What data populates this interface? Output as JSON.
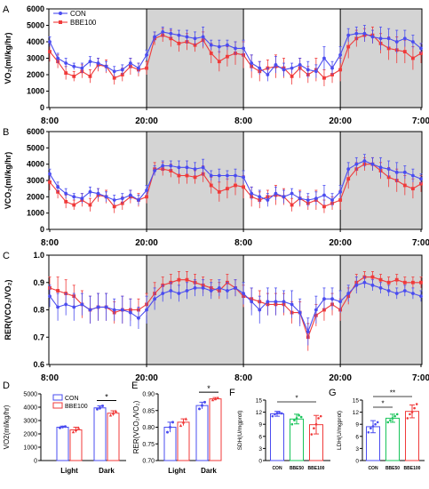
{
  "chart_data": [
    {
      "panel": "A",
      "type": "line",
      "ylabel": "VO₂(ml/kg/hr)",
      "ylim": [
        0,
        6000
      ],
      "yticks": [
        0,
        1000,
        2000,
        3000,
        4000,
        5000,
        6000
      ],
      "xtick_labels": [
        "8:00",
        "20:00",
        "8:00",
        "20:00",
        "7:00"
      ],
      "shaded_regions": [
        [
          12,
          24
        ],
        [
          36,
          47
        ]
      ],
      "legend": "top-left",
      "series": [
        {
          "name": "CON",
          "color": "#4a4cf0",
          "marker": "circle",
          "values": [
            4000,
            3000,
            2700,
            2500,
            2400,
            2800,
            2700,
            2500,
            2200,
            2300,
            2700,
            2400,
            3200,
            4300,
            4600,
            4500,
            4400,
            4300,
            4200,
            4300,
            3800,
            3700,
            3800,
            3600,
            3600,
            2700,
            2400,
            2000,
            2600,
            2300,
            2400,
            2600,
            2300,
            2200,
            3000,
            2400,
            3200,
            4400,
            4500,
            4500,
            4300,
            4200,
            4200,
            4000,
            4200,
            4000,
            3600
          ],
          "errors": [
            300,
            300,
            300,
            200,
            300,
            300,
            300,
            300,
            300,
            300,
            300,
            300,
            300,
            300,
            300,
            300,
            300,
            400,
            400,
            600,
            300,
            400,
            300,
            400,
            500,
            500,
            400,
            400,
            500,
            400,
            300,
            400,
            500,
            400,
            700,
            400,
            500,
            400,
            400,
            500,
            400,
            700,
            600,
            700,
            500,
            400,
            300
          ]
        },
        {
          "name": "BBE100",
          "color": "#f03a3a",
          "marker": "square",
          "values": [
            3400,
            2800,
            2100,
            1900,
            2200,
            1900,
            2600,
            2500,
            1800,
            2000,
            2500,
            2300,
            2400,
            4200,
            4400,
            4200,
            3900,
            4000,
            3800,
            4100,
            3300,
            2800,
            3100,
            3300,
            3200,
            2500,
            2200,
            2400,
            2500,
            2400,
            1900,
            2400,
            2000,
            2300,
            1800,
            2000,
            2300,
            3700,
            4200,
            4400,
            4400,
            3900,
            3600,
            3500,
            3400,
            3000,
            3300
          ],
          "errors": [
            600,
            400,
            400,
            300,
            400,
            400,
            400,
            400,
            400,
            400,
            500,
            400,
            400,
            400,
            400,
            500,
            500,
            500,
            400,
            500,
            600,
            600,
            600,
            700,
            800,
            700,
            600,
            500,
            700,
            600,
            500,
            600,
            500,
            700,
            500,
            500,
            700,
            700,
            500,
            400,
            500,
            600,
            700,
            800,
            700,
            700,
            600
          ]
        }
      ]
    },
    {
      "panel": "B",
      "type": "line",
      "ylabel": "VCO₂(ml/kg/hr)",
      "ylim": [
        0,
        6000
      ],
      "yticks": [
        0,
        1000,
        2000,
        3000,
        4000,
        5000,
        6000
      ],
      "xtick_labels": [
        "8:00",
        "20:00",
        "8:00",
        "20:00",
        "7:00"
      ],
      "shaded_regions": [
        [
          12,
          24
        ],
        [
          36,
          47
        ]
      ],
      "series": [
        {
          "name": "CON",
          "color": "#4a4cf0",
          "marker": "circle",
          "values": [
            3400,
            2600,
            2200,
            2000,
            1900,
            2300,
            2200,
            2000,
            1800,
            1900,
            2100,
            1800,
            2400,
            3600,
            3900,
            3900,
            3800,
            3800,
            3700,
            3800,
            3300,
            3300,
            3300,
            3300,
            3200,
            2200,
            2000,
            1800,
            2200,
            2000,
            2200,
            1900,
            1800,
            1900,
            2100,
            1800,
            2300,
            3700,
            4000,
            4200,
            4000,
            3800,
            3700,
            3500,
            3500,
            3300,
            3100
          ],
          "errors": [
            300,
            300,
            300,
            200,
            300,
            300,
            300,
            300,
            300,
            300,
            300,
            300,
            300,
            300,
            300,
            300,
            400,
            400,
            400,
            500,
            300,
            400,
            300,
            400,
            400,
            400,
            400,
            400,
            400,
            400,
            300,
            400,
            400,
            400,
            600,
            400,
            400,
            400,
            400,
            400,
            400,
            600,
            500,
            600,
            400,
            400,
            300
          ]
        },
        {
          "name": "BBE100",
          "color": "#f03a3a",
          "marker": "square",
          "values": [
            2900,
            2300,
            1700,
            1500,
            1800,
            1500,
            2100,
            2000,
            1400,
            1600,
            2000,
            1800,
            2000,
            3700,
            3700,
            3600,
            3300,
            3300,
            3200,
            3400,
            2700,
            2300,
            2500,
            2700,
            2600,
            2000,
            1800,
            2000,
            2100,
            2000,
            1500,
            1900,
            1600,
            1800,
            1400,
            1600,
            1800,
            3100,
            3700,
            4000,
            4000,
            3600,
            3200,
            3000,
            2700,
            2500,
            2800
          ],
          "errors": [
            500,
            400,
            400,
            300,
            400,
            400,
            400,
            400,
            400,
            400,
            400,
            400,
            400,
            400,
            400,
            400,
            500,
            500,
            400,
            500,
            500,
            600,
            600,
            600,
            700,
            600,
            500,
            400,
            600,
            500,
            400,
            500,
            400,
            600,
            400,
            400,
            600,
            600,
            400,
            400,
            400,
            500,
            600,
            700,
            600,
            600,
            500
          ]
        }
      ]
    },
    {
      "panel": "C",
      "type": "line",
      "ylabel": "RER(VCO₂/VO₂)",
      "ylim": [
        0.6,
        1.0
      ],
      "yticks": [
        0.6,
        0.7,
        0.8,
        0.9,
        1.0
      ],
      "xtick_labels": [
        "8:00",
        "20:00",
        "8:00",
        "20:00",
        "7:00"
      ],
      "shaded_regions": [
        [
          12,
          24
        ],
        [
          36,
          47
        ]
      ],
      "series": [
        {
          "name": "CON",
          "color": "#4a4cf0",
          "marker": "circle",
          "values": [
            0.85,
            0.81,
            0.82,
            0.81,
            0.82,
            0.8,
            0.81,
            0.81,
            0.8,
            0.8,
            0.79,
            0.77,
            0.8,
            0.84,
            0.86,
            0.87,
            0.86,
            0.87,
            0.88,
            0.88,
            0.87,
            0.88,
            0.87,
            0.88,
            0.86,
            0.83,
            0.8,
            0.83,
            0.83,
            0.83,
            0.82,
            0.79,
            0.72,
            0.8,
            0.84,
            0.84,
            0.83,
            0.86,
            0.89,
            0.9,
            0.89,
            0.88,
            0.87,
            0.86,
            0.87,
            0.86,
            0.85
          ],
          "errors": [
            0.04,
            0.05,
            0.04,
            0.05,
            0.04,
            0.05,
            0.05,
            0.05,
            0.04,
            0.05,
            0.05,
            0.04,
            0.05,
            0.04,
            0.03,
            0.03,
            0.03,
            0.03,
            0.03,
            0.03,
            0.03,
            0.03,
            0.03,
            0.03,
            0.04,
            0.05,
            0.05,
            0.05,
            0.05,
            0.04,
            0.05,
            0.05,
            0.05,
            0.05,
            0.04,
            0.04,
            0.04,
            0.03,
            0.03,
            0.02,
            0.02,
            0.02,
            0.02,
            0.02,
            0.02,
            0.02,
            0.02
          ]
        },
        {
          "name": "BBE100",
          "color": "#f03a3a",
          "marker": "square",
          "values": [
            0.88,
            0.87,
            0.86,
            0.85,
            0.82,
            0.8,
            0.81,
            0.81,
            0.79,
            0.8,
            0.8,
            0.8,
            0.82,
            0.86,
            0.89,
            0.9,
            0.91,
            0.91,
            0.9,
            0.89,
            0.88,
            0.87,
            0.9,
            0.88,
            0.85,
            0.84,
            0.83,
            0.82,
            0.82,
            0.82,
            0.79,
            0.79,
            0.7,
            0.78,
            0.8,
            0.82,
            0.8,
            0.85,
            0.9,
            0.92,
            0.92,
            0.91,
            0.9,
            0.91,
            0.9,
            0.9,
            0.9
          ],
          "errors": [
            0.04,
            0.05,
            0.05,
            0.04,
            0.05,
            0.05,
            0.05,
            0.05,
            0.04,
            0.05,
            0.04,
            0.04,
            0.04,
            0.04,
            0.03,
            0.03,
            0.03,
            0.03,
            0.03,
            0.03,
            0.03,
            0.03,
            0.03,
            0.03,
            0.04,
            0.04,
            0.04,
            0.04,
            0.04,
            0.04,
            0.04,
            0.04,
            0.05,
            0.04,
            0.04,
            0.04,
            0.04,
            0.03,
            0.03,
            0.02,
            0.02,
            0.02,
            0.02,
            0.02,
            0.02,
            0.02,
            0.02
          ]
        }
      ]
    },
    {
      "panel": "D",
      "type": "bar",
      "ylabel": "VO2(ml/kg/hr)",
      "ylim": [
        0,
        5000
      ],
      "yticks": [
        0,
        1000,
        2000,
        3000,
        4000,
        5000
      ],
      "categories": [
        "Light",
        "Dark"
      ],
      "legend": "top-left",
      "significance": [
        {
          "category": "Dark",
          "label": "*"
        }
      ],
      "series": [
        {
          "name": "CON",
          "color": "#4a4cf0",
          "values": [
            2500,
            3950
          ],
          "errors": [
            80,
            150
          ],
          "points": [
            [
              2450,
              2520,
              2550
            ],
            [
              3850,
              3950,
              4100
            ]
          ]
        },
        {
          "name": "BBE100",
          "color": "#f03a3a",
          "values": [
            2300,
            3550
          ],
          "errors": [
            200,
            180
          ],
          "points": [
            [
              2150,
              2300,
              2450
            ],
            [
              3400,
              3550,
              3700
            ]
          ]
        }
      ]
    },
    {
      "panel": "E",
      "type": "bar",
      "ylabel": "RER(VCO₂/VO₂)",
      "ylim": [
        0.7,
        0.9
      ],
      "yticks": [
        0.7,
        0.75,
        0.8,
        0.85,
        0.9
      ],
      "categories": [
        "Light",
        "Dark"
      ],
      "significance": [
        {
          "category": "Dark",
          "label": "*"
        }
      ],
      "series": [
        {
          "name": "CON",
          "color": "#4a4cf0",
          "values": [
            0.8,
            0.865
          ],
          "errors": [
            0.015,
            0.01
          ],
          "points": [
            [
              0.785,
              0.8,
              0.815
            ],
            [
              0.855,
              0.865,
              0.875
            ]
          ]
        },
        {
          "name": "BBE100",
          "color": "#f03a3a",
          "values": [
            0.815,
            0.885
          ],
          "errors": [
            0.01,
            0.004
          ],
          "points": [
            [
              0.805,
              0.815,
              0.825
            ],
            [
              0.882,
              0.885,
              0.888
            ]
          ]
        }
      ]
    },
    {
      "panel": "F",
      "type": "bar",
      "ylabel": "SDH(U/mgprot)",
      "ylim": [
        0,
        15
      ],
      "yticks": [
        0,
        3,
        6,
        9,
        12,
        15
      ],
      "categories": [
        "CON",
        "BBE50",
        "BBE100"
      ],
      "colors": [
        "#4a4cf0",
        "#18c45a",
        "#f03a3a"
      ],
      "values": [
        11.6,
        10.3,
        8.9
      ],
      "errors": [
        0.6,
        1.2,
        2.3
      ],
      "points": [
        [
          11.0,
          11.5,
          11.8,
          12.0,
          11.7
        ],
        [
          9.0,
          10.0,
          10.5,
          11.2,
          10.8
        ],
        [
          6.5,
          8.0,
          9.0,
          10.5,
          11.0
        ]
      ],
      "significance": [
        {
          "from": "CON",
          "to": "BBE100",
          "label": "*"
        }
      ]
    },
    {
      "panel": "G",
      "type": "bar",
      "ylabel": "LDH(U/mgprot)",
      "ylim": [
        0,
        15
      ],
      "yticks": [
        0,
        3,
        6,
        9,
        12,
        15
      ],
      "categories": [
        "CON",
        "BBE50",
        "BBE100"
      ],
      "colors": [
        "#4a4cf0",
        "#18c45a",
        "#f03a3a"
      ],
      "values": [
        8.4,
        10.5,
        12.2
      ],
      "errors": [
        1.5,
        1.0,
        1.6
      ],
      "points": [
        [
          7.0,
          8.0,
          8.5,
          9.0,
          9.5
        ],
        [
          9.5,
          10.0,
          10.5,
          11.0,
          11.5
        ],
        [
          10.5,
          11.5,
          12.0,
          13.0,
          14.0
        ]
      ],
      "significance": [
        {
          "from": "CON",
          "to": "BBE50",
          "label": "*"
        },
        {
          "from": "CON",
          "to": "BBE100",
          "label": "**"
        }
      ]
    }
  ]
}
